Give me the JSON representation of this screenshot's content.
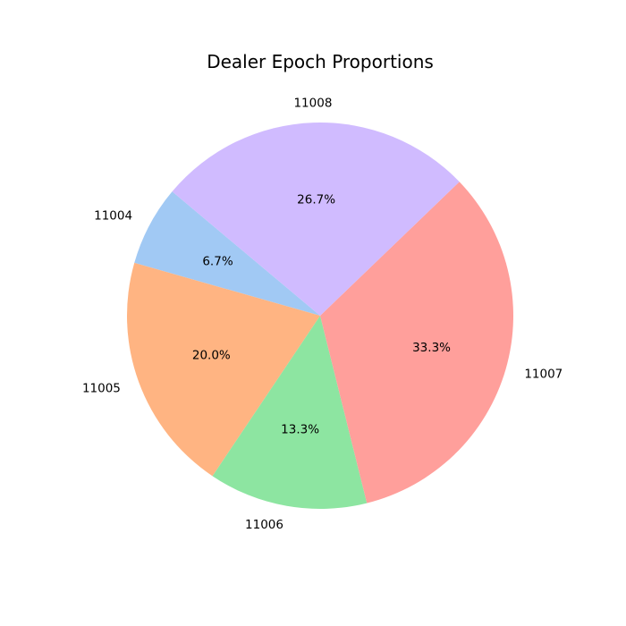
{
  "chart_data": {
    "type": "pie",
    "title": "Dealer Epoch Proportions",
    "start_angle_deg": 140,
    "direction": "counterclockwise",
    "slices": [
      {
        "label": "11004",
        "value": 6.7,
        "pct_label": "6.7%",
        "color": "#a1c9f4"
      },
      {
        "label": "11005",
        "value": 20.0,
        "pct_label": "20.0%",
        "color": "#ffb482"
      },
      {
        "label": "11006",
        "value": 13.3,
        "pct_label": "13.3%",
        "color": "#8de5a1"
      },
      {
        "label": "11007",
        "value": 33.3,
        "pct_label": "33.3%",
        "color": "#ff9f9b"
      },
      {
        "label": "11008",
        "value": 26.7,
        "pct_label": "26.7%",
        "color": "#d0bbff"
      }
    ],
    "legend": "none",
    "grid": false
  }
}
